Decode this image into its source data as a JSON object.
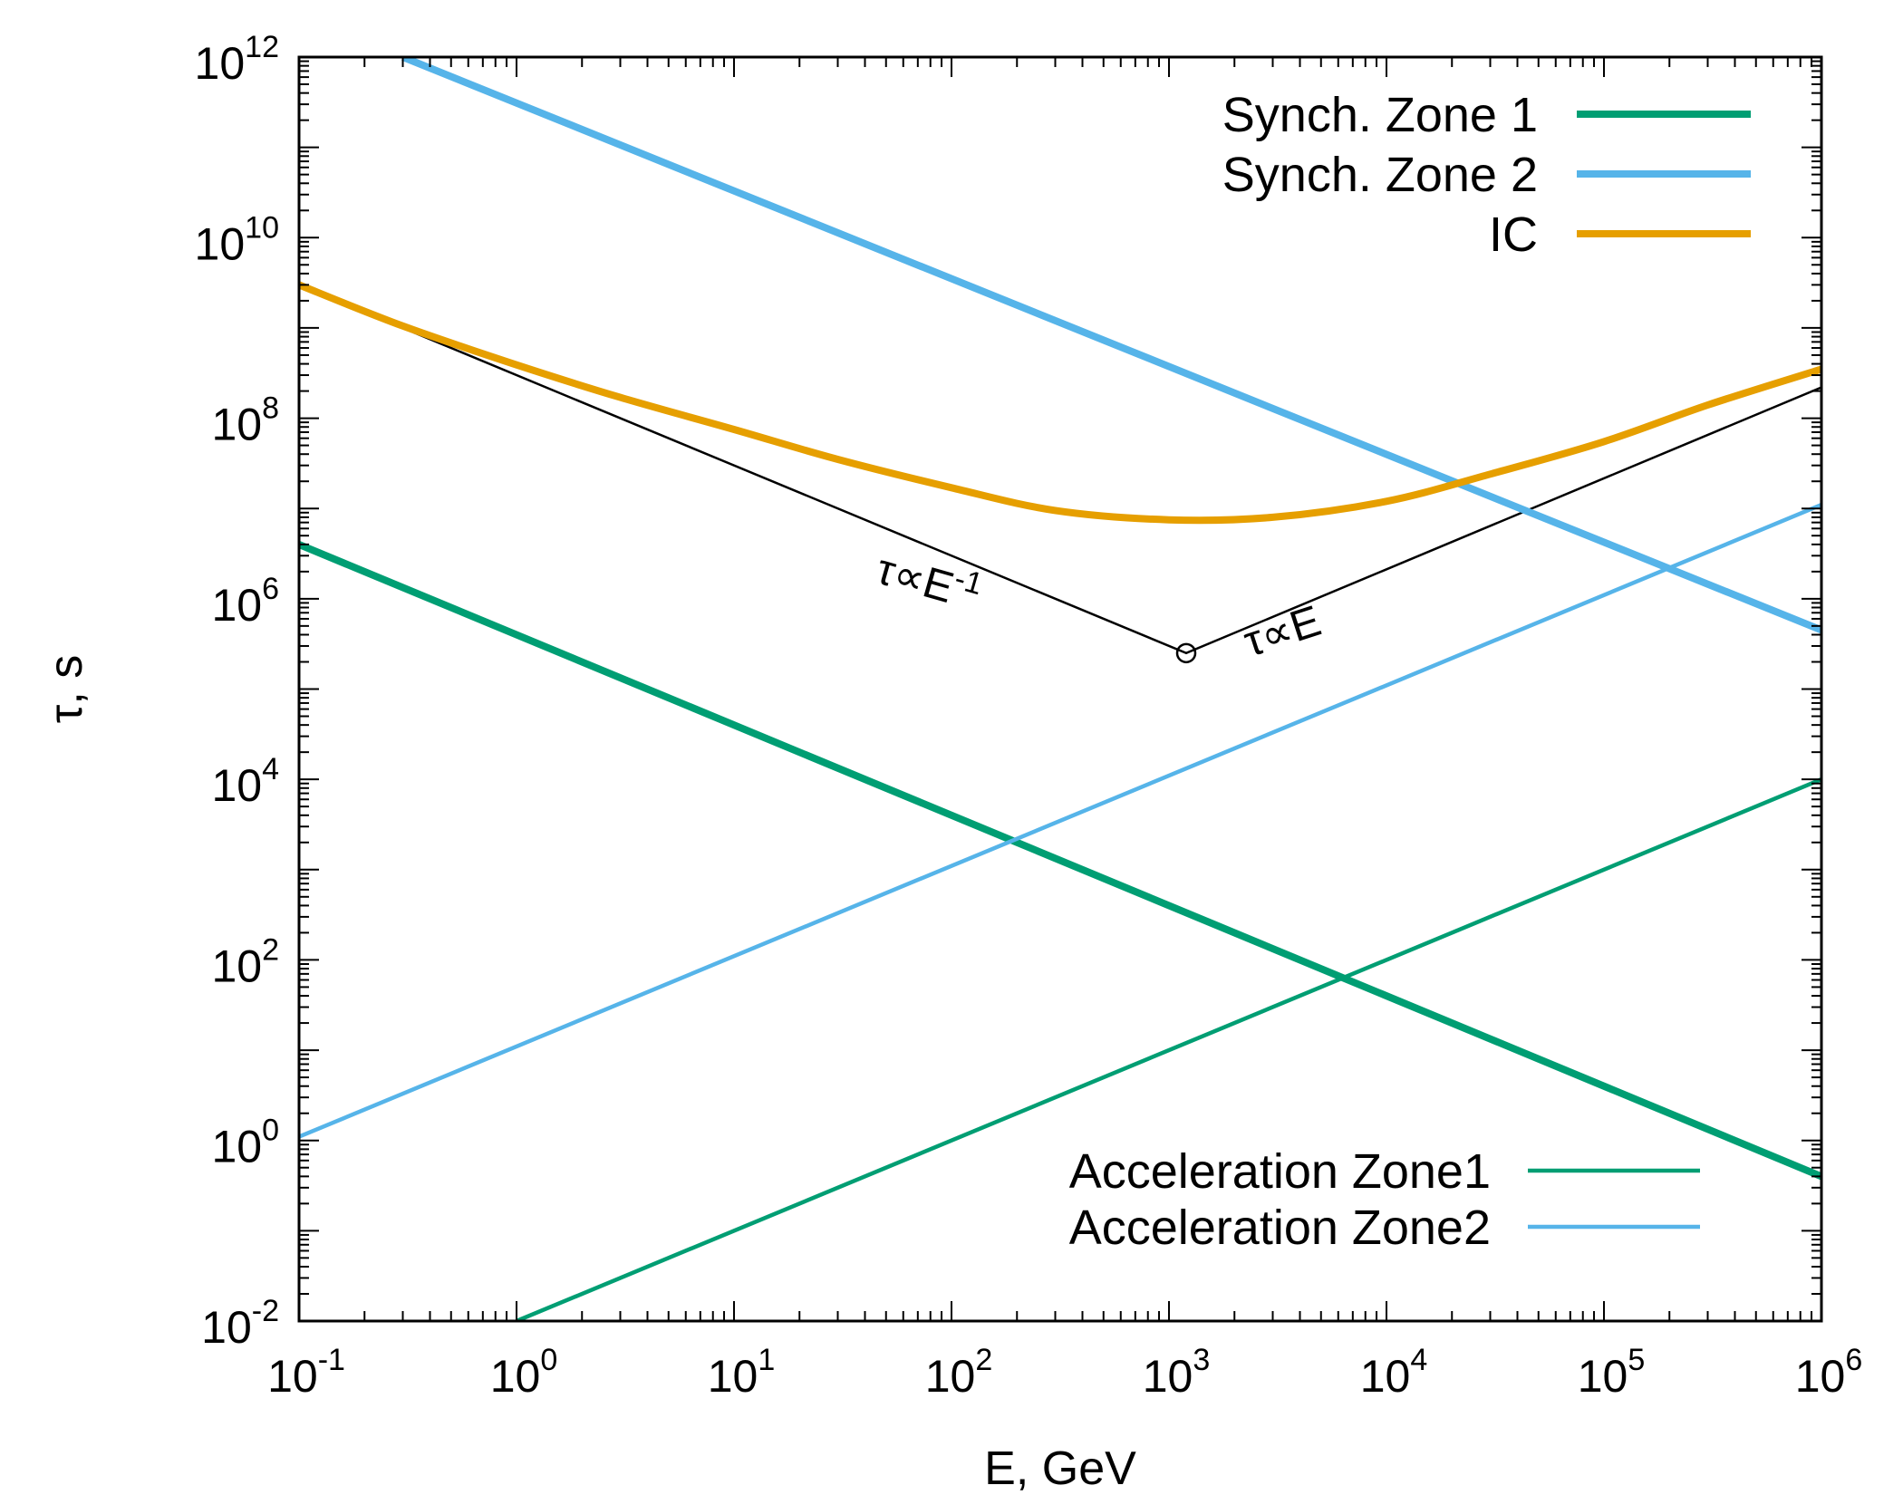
{
  "chart_data": {
    "type": "line",
    "xscale": "log",
    "yscale": "log",
    "xlabel": "E, GeV",
    "ylabel": "τ, s",
    "xlim": [
      0.1,
      1000000
    ],
    "ylim": [
      0.01,
      1000000000000
    ],
    "x_ticks": [
      {
        "value": 0.1,
        "base": "10",
        "exp": "-1"
      },
      {
        "value": 1,
        "base": "10",
        "exp": "0"
      },
      {
        "value": 10,
        "base": "10",
        "exp": "1"
      },
      {
        "value": 100,
        "base": "10",
        "exp": "2"
      },
      {
        "value": 1000,
        "base": "10",
        "exp": "3"
      },
      {
        "value": 10000,
        "base": "10",
        "exp": "4"
      },
      {
        "value": 100000,
        "base": "10",
        "exp": "5"
      },
      {
        "value": 1000000,
        "base": "10",
        "exp": "6"
      }
    ],
    "y_ticks": [
      {
        "value": 0.01,
        "base": "10",
        "exp": "-2"
      },
      {
        "value": 1,
        "base": "10",
        "exp": "0"
      },
      {
        "value": 100,
        "base": "10",
        "exp": "2"
      },
      {
        "value": 10000,
        "base": "10",
        "exp": "4"
      },
      {
        "value": 1000000,
        "base": "10",
        "exp": "6"
      },
      {
        "value": 100000000,
        "base": "10",
        "exp": "8"
      },
      {
        "value": 10000000000,
        "base": "10",
        "exp": "10"
      },
      {
        "value": 1000000000000,
        "base": "10",
        "exp": "12"
      }
    ],
    "series": [
      {
        "name": "Synch. Zone 1",
        "color": "#009e73",
        "width": "thick",
        "legend": "upper",
        "x": [
          0.1,
          1000000
        ],
        "y": [
          4000000,
          0.4
        ]
      },
      {
        "name": "Synch. Zone 2",
        "color": "#56b4e9",
        "width": "thick",
        "legend": "upper",
        "x": [
          0.3,
          1000000
        ],
        "y": [
          1000000000000,
          450000
        ]
      },
      {
        "name": "IC",
        "color": "#e69f00",
        "width": "thick",
        "legend": "upper",
        "x": [
          0.1,
          0.3,
          1,
          3,
          10,
          30,
          100,
          300,
          1000,
          3000,
          10000,
          30000,
          100000,
          300000,
          1000000
        ],
        "y": [
          3000000000,
          1050000000,
          390000000,
          170000000,
          75000000,
          35000000,
          17000000,
          9500000,
          7500000,
          8000000,
          12000000,
          24000000,
          55000000,
          140000000,
          350000000
        ]
      },
      {
        "name": "Acceleration Zone1",
        "color": "#009e73",
        "width": "thin",
        "legend": "lower",
        "x": [
          1,
          1000000
        ],
        "y": [
          0.01,
          10000
        ]
      },
      {
        "name": "Acceleration Zone2",
        "color": "#56b4e9",
        "width": "thin",
        "legend": "lower",
        "x": [
          0.1,
          1000000
        ],
        "y": [
          1.1,
          11000000
        ]
      }
    ],
    "guide_line": {
      "color": "#000000",
      "x": [
        0.1,
        1200,
        1000000
      ],
      "y": [
        3000000000,
        250000,
        220000000
      ],
      "marker_at": {
        "x": 1200,
        "y": 250000
      }
    },
    "annotations": [
      {
        "base": "τ∝E",
        "exp": "-1"
      },
      {
        "base": "τ∝E",
        "exp": ""
      }
    ],
    "legends": {
      "upper": "top-right",
      "lower": "bottom-right"
    }
  }
}
